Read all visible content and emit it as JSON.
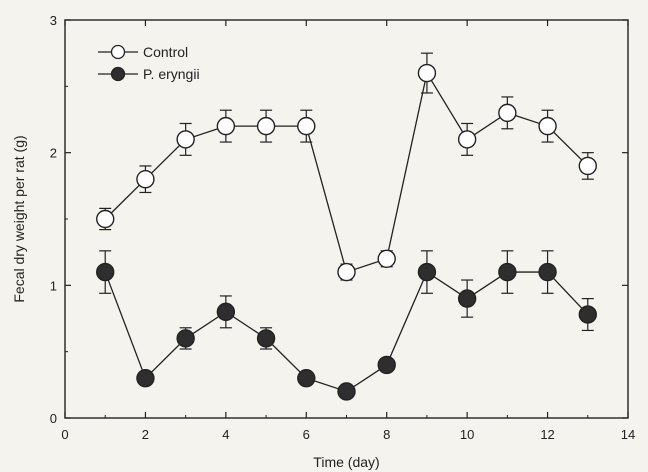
{
  "chart_data": {
    "type": "line",
    "title": "",
    "xlabel": "Time (day)",
    "ylabel": "Fecal dry weight per rat (g)",
    "xlim": [
      0,
      14
    ],
    "ylim": [
      0,
      3
    ],
    "xticks": [
      0,
      2,
      4,
      6,
      8,
      10,
      12,
      14
    ],
    "yticks": [
      0,
      1,
      2,
      3
    ],
    "grid": false,
    "legend": "top-left",
    "x": [
      1,
      2,
      3,
      4,
      5,
      6,
      7,
      8,
      9,
      10,
      11,
      12,
      13
    ],
    "series": [
      {
        "name": "Control",
        "marker": "open-circle",
        "values": [
          1.5,
          1.8,
          2.1,
          2.2,
          2.2,
          2.2,
          1.1,
          1.2,
          2.6,
          2.1,
          2.3,
          2.2,
          1.9
        ],
        "errors": [
          0.08,
          0.1,
          0.12,
          0.12,
          0.12,
          0.12,
          0.06,
          0.06,
          0.15,
          0.12,
          0.12,
          0.12,
          0.1
        ]
      },
      {
        "name": "P. eryngii",
        "marker": "filled-circle",
        "values": [
          1.1,
          0.3,
          0.6,
          0.8,
          0.6,
          0.3,
          0.2,
          0.4,
          1.1,
          0.9,
          1.1,
          1.1,
          0.78
        ],
        "errors": [
          0.16,
          0.02,
          0.08,
          0.12,
          0.08,
          0.02,
          0.02,
          0.02,
          0.16,
          0.14,
          0.16,
          0.16,
          0.12
        ]
      }
    ],
    "colors": {
      "axis": "#222222",
      "marker_fill": "#ffffff",
      "marker_dark": "#2e2e2e"
    }
  }
}
